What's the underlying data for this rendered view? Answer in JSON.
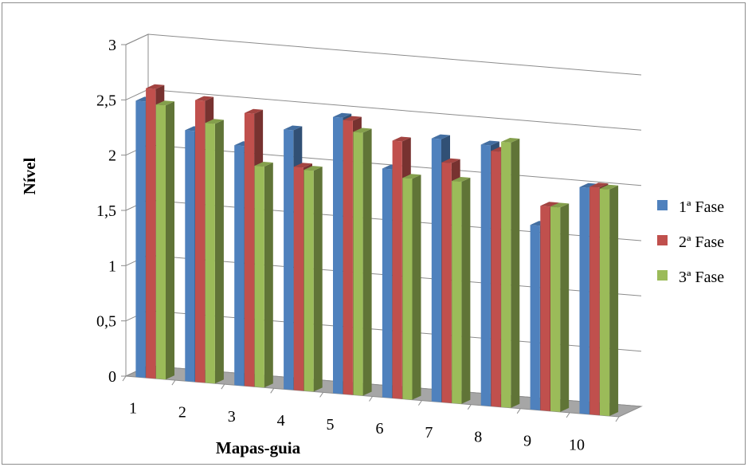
{
  "chart_data": {
    "type": "bar",
    "title": "",
    "xlabel": "Mapas-guia",
    "ylabel": "Nível",
    "categories": [
      "1",
      "2",
      "3",
      "4",
      "5",
      "6",
      "7",
      "8",
      "9",
      "10"
    ],
    "series": [
      {
        "name": "1ª Fase",
        "color": "#4f81bd",
        "values": [
          2.5,
          2.27,
          2.17,
          2.35,
          2.5,
          2.07,
          2.38,
          2.36,
          1.67,
          2.05
        ]
      },
      {
        "name": "2ª Fase",
        "color": "#c0504d",
        "values": [
          2.62,
          2.55,
          2.47,
          2.02,
          2.48,
          2.33,
          2.17,
          2.31,
          1.85,
          2.06
        ]
      },
      {
        "name": "3ª Fase",
        "color": "#9bbb59",
        "values": [
          2.48,
          2.35,
          2.0,
          2.0,
          2.38,
          2.0,
          2.01,
          2.4,
          1.85,
          2.05
        ]
      }
    ],
    "ylim": [
      0,
      3
    ],
    "yticks": [
      "0",
      "0,5",
      "1",
      "1,5",
      "2",
      "2,5",
      "3"
    ],
    "grid": true,
    "legend_position": "right",
    "style": "3d-clustered-column"
  }
}
